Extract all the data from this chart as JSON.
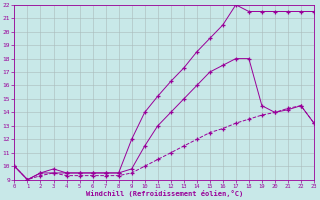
{
  "xlabel": "Windchill (Refroidissement éolien,°C)",
  "bg_color": "#c8e8e8",
  "line_color": "#990099",
  "grid_color": "#aabbbb",
  "xlim": [
    0,
    23
  ],
  "ylim": [
    9,
    22
  ],
  "xticks": [
    0,
    1,
    2,
    3,
    4,
    5,
    6,
    7,
    8,
    9,
    10,
    11,
    12,
    13,
    14,
    15,
    16,
    17,
    18,
    19,
    20,
    21,
    22,
    23
  ],
  "yticks": [
    9,
    10,
    11,
    12,
    13,
    14,
    15,
    16,
    17,
    18,
    19,
    20,
    21,
    22
  ],
  "line1_x": [
    0,
    1,
    2,
    3,
    4,
    5,
    6,
    7,
    8,
    9,
    10,
    11,
    12,
    13,
    14,
    15,
    16,
    17,
    18,
    19,
    20,
    21,
    22,
    23
  ],
  "line1_y": [
    10,
    9,
    9.3,
    9.5,
    9.3,
    9.3,
    9.3,
    9.3,
    9.3,
    9.5,
    10.0,
    10.5,
    11.0,
    11.5,
    12.0,
    12.5,
    12.8,
    13.2,
    13.5,
    13.8,
    14.0,
    14.3,
    14.5,
    13.2
  ],
  "line2_x": [
    0,
    1,
    2,
    3,
    4,
    5,
    6,
    7,
    8,
    9,
    10,
    11,
    12,
    13,
    14,
    15,
    16,
    17,
    18,
    19,
    20,
    21,
    22,
    23
  ],
  "line2_y": [
    10,
    9,
    9.5,
    9.5,
    9.5,
    9.5,
    9.5,
    9.5,
    9.5,
    9.8,
    11.5,
    13.0,
    14.0,
    15.0,
    16.0,
    17.0,
    17.5,
    18.0,
    18.0,
    14.5,
    14.0,
    14.2,
    14.5,
    13.2
  ],
  "line3_x": [
    0,
    1,
    2,
    3,
    4,
    5,
    6,
    7,
    8,
    9,
    10,
    11,
    12,
    13,
    14,
    15,
    16,
    17,
    18,
    19,
    20,
    21,
    22,
    23
  ],
  "line3_y": [
    10,
    9,
    9.5,
    9.8,
    9.5,
    9.5,
    9.5,
    9.5,
    9.5,
    12.0,
    14.0,
    15.2,
    16.3,
    17.3,
    18.5,
    19.5,
    20.5,
    22.0,
    21.5,
    21.5,
    21.5,
    21.5,
    21.5,
    21.5
  ]
}
